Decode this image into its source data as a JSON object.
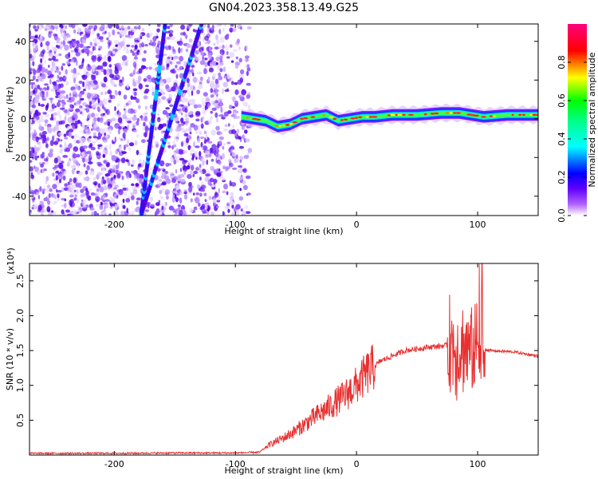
{
  "title": "GN04.2023.358.13.49.G25",
  "chart_data": [
    {
      "type": "heatmap",
      "xlabel": "Height of straight line (km)",
      "ylabel": "Frequency (Hz)",
      "xlim": [
        -270,
        150
      ],
      "ylim": [
        -50,
        49
      ],
      "x_ticks": [
        -200,
        -100,
        0,
        100
      ],
      "y_ticks": [
        -40,
        -20,
        0,
        20,
        40
      ],
      "colorbar": {
        "label": "Normalized spectral amplitude",
        "range": [
          0.0,
          1.0
        ],
        "ticks": [
          0.0,
          0.2,
          0.4,
          0.6,
          0.8
        ],
        "colors": [
          "#ffffff",
          "#8000ff",
          "#0000ff",
          "#00ffff",
          "#00ff00",
          "#ffff00",
          "#ff0000",
          "#ff00ff"
        ]
      },
      "noise_region": {
        "x": [
          -270,
          -88
        ],
        "y": [
          -50,
          49
        ]
      },
      "streaks": [
        {
          "x": [
            -178,
            -158
          ],
          "y": [
            -50,
            49
          ]
        },
        {
          "x": [
            -178,
            -128
          ],
          "y": [
            -50,
            49
          ]
        }
      ],
      "signal_band": {
        "x": [
          -95,
          150
        ],
        "frequency_hz": [
          1,
          0,
          -1,
          -4,
          -3,
          0,
          1,
          2,
          -1,
          0,
          1,
          1,
          2,
          2,
          3,
          3,
          2,
          1,
          2,
          2
        ],
        "x_points": [
          -95,
          -85,
          -75,
          -65,
          -55,
          -45,
          -35,
          -25,
          -15,
          -5,
          5,
          15,
          30,
          50,
          70,
          85,
          95,
          105,
          125,
          150
        ]
      }
    },
    {
      "type": "line",
      "xlabel": "Height of straight line (km)",
      "ylabel": "SNR (10 * v/v)",
      "y_multiplier": "(x10⁴)",
      "xlim": [
        -270,
        150
      ],
      "ylim": [
        0,
        27500
      ],
      "x_ticks": [
        -200,
        -100,
        0,
        100
      ],
      "y_ticks": [
        5000,
        10000,
        15000,
        20000,
        25000
      ],
      "y_tick_labels": [
        "0.5",
        "1.0",
        "1.5",
        "2.0",
        "2.5"
      ],
      "series": [
        {
          "color": "#e83030",
          "x": [
            -270,
            -200,
            -150,
            -100,
            -80,
            -72,
            -60,
            -50,
            -40,
            -30,
            -20,
            -10,
            0,
            10,
            20,
            40,
            60,
            80,
            85,
            90,
            95,
            100,
            103,
            110,
            130,
            150
          ],
          "y": [
            250,
            250,
            300,
            300,
            400,
            1500,
            2500,
            3500,
            4800,
            6000,
            7200,
            8500,
            10000,
            12000,
            13500,
            15000,
            15500,
            15800,
            15000,
            15600,
            15200,
            15500,
            15300,
            15000,
            14800,
            14200
          ]
        }
      ]
    }
  ]
}
